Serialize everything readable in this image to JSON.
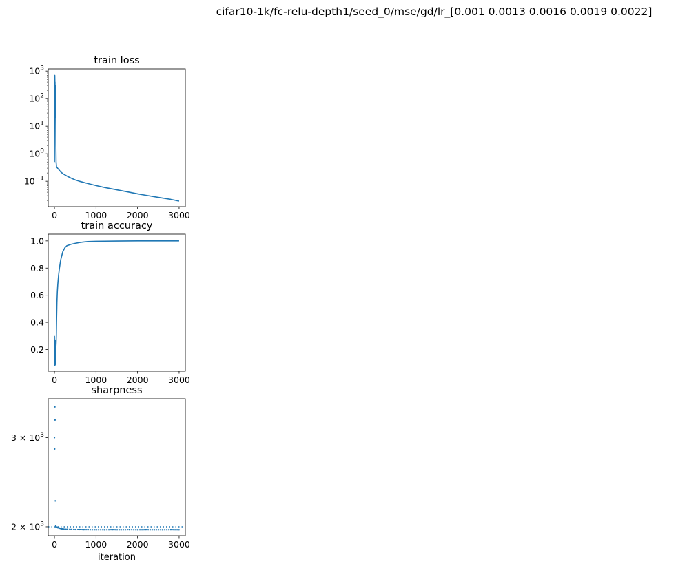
{
  "suptitle": "cifar10-1k/fc-relu-depth1/seed_0/mse/gd/lr_[0.001  0.0013 0.0016 0.0019 0.0022]",
  "colors": {
    "series": "#1f77b4",
    "axes": "#000000"
  },
  "chart_data": [
    {
      "type": "line",
      "title": "train loss",
      "xlabel": "",
      "ylabel": "",
      "yscale": "log",
      "xlim": [
        -150,
        3150
      ],
      "ylim": [
        0.012,
        1200
      ],
      "xticks": [
        0,
        1000,
        2000,
        3000
      ],
      "xtick_labels": [
        "0",
        "1000",
        "2000",
        "3000"
      ],
      "yticks": [
        0.1,
        1,
        10,
        100,
        1000
      ],
      "ytick_labels": [
        "10",
        "10",
        "10",
        "10",
        "10"
      ],
      "ytick_exponents": [
        "−1",
        "0",
        "1",
        "2",
        "3"
      ],
      "series": [
        {
          "x": [
            0,
            2,
            4,
            6,
            8,
            10,
            12,
            14,
            16,
            18,
            20,
            22,
            24,
            26,
            28,
            30,
            35,
            40,
            50,
            75,
            100,
            150,
            200,
            300,
            400,
            500,
            600,
            800,
            1000,
            1200,
            1500,
            1800,
            2000,
            2200,
            2500,
            2800,
            3000
          ],
          "y": [
            0.5,
            5,
            40,
            300,
            700,
            500,
            150,
            400,
            80,
            250,
            30,
            150,
            20,
            60,
            300,
            40,
            2,
            0.5,
            0.33,
            0.3,
            0.27,
            0.22,
            0.19,
            0.155,
            0.13,
            0.112,
            0.1,
            0.083,
            0.07,
            0.06,
            0.049,
            0.04,
            0.035,
            0.031,
            0.026,
            0.022,
            0.019
          ]
        }
      ]
    },
    {
      "type": "line",
      "title": "train accuracy",
      "xlabel": "",
      "ylabel": "",
      "yscale": "linear",
      "xlim": [
        -150,
        3150
      ],
      "ylim": [
        0.04,
        1.05
      ],
      "xticks": [
        0,
        1000,
        2000,
        3000
      ],
      "xtick_labels": [
        "0",
        "1000",
        "2000",
        "3000"
      ],
      "yticks": [
        0.2,
        0.4,
        0.6,
        0.8,
        1.0
      ],
      "ytick_labels": [
        "0.2",
        "0.4",
        "0.6",
        "0.8",
        "1.0"
      ],
      "series": [
        {
          "x": [
            0,
            2,
            5,
            8,
            10,
            12,
            15,
            18,
            20,
            22,
            25,
            28,
            30,
            35,
            40,
            45,
            50,
            60,
            70,
            80,
            100,
            120,
            150,
            200,
            250,
            300,
            400,
            500,
            600,
            700,
            800,
            1000,
            1200,
            1500,
            2000,
            2500,
            3000
          ],
          "y": [
            0.3,
            0.2,
            0.12,
            0.09,
            0.1,
            0.08,
            0.1,
            0.27,
            0.12,
            0.2,
            0.09,
            0.25,
            0.1,
            0.22,
            0.25,
            0.3,
            0.4,
            0.55,
            0.63,
            0.68,
            0.75,
            0.8,
            0.86,
            0.92,
            0.95,
            0.965,
            0.975,
            0.982,
            0.988,
            0.992,
            0.995,
            0.997,
            0.998,
            0.999,
            1.0,
            1.0,
            1.0
          ]
        }
      ]
    },
    {
      "type": "scatter",
      "title": "sharpness",
      "xlabel": "iteration",
      "ylabel": "",
      "yscale": "log",
      "xlim": [
        -150,
        3150
      ],
      "ylim": [
        1920,
        3580
      ],
      "xticks": [
        0,
        1000,
        2000,
        3000
      ],
      "xtick_labels": [
        "0",
        "1000",
        "2000",
        "3000"
      ],
      "yticks": [
        2000,
        3000
      ],
      "ytick_labels": [
        "2 × 10",
        "3 × 10"
      ],
      "ytick_exponents": [
        "3",
        "3"
      ],
      "reference_line": {
        "y": 2000,
        "style": "dotted"
      },
      "series": [
        {
          "x": [
            0,
            5,
            10,
            15,
            20,
            30,
            40,
            60,
            80,
            100,
            120,
            140,
            160,
            180,
            200,
            250,
            300,
            400,
            500,
            600,
            700,
            800,
            1000,
            1200,
            1400,
            1600,
            1800,
            2000,
            2200,
            2400,
            2600,
            2800,
            3000
          ],
          "y": [
            3000,
            2850,
            3450,
            3250,
            2250,
            2010,
            2000,
            1995,
            1992,
            1990,
            1988,
            1985,
            1983,
            1982,
            1980,
            1978,
            1977,
            1976,
            1975,
            1975,
            1974,
            1974,
            1973,
            1973,
            1974,
            1973,
            1974,
            1973,
            1974,
            1973,
            1973,
            1974,
            1973
          ]
        }
      ]
    }
  ]
}
